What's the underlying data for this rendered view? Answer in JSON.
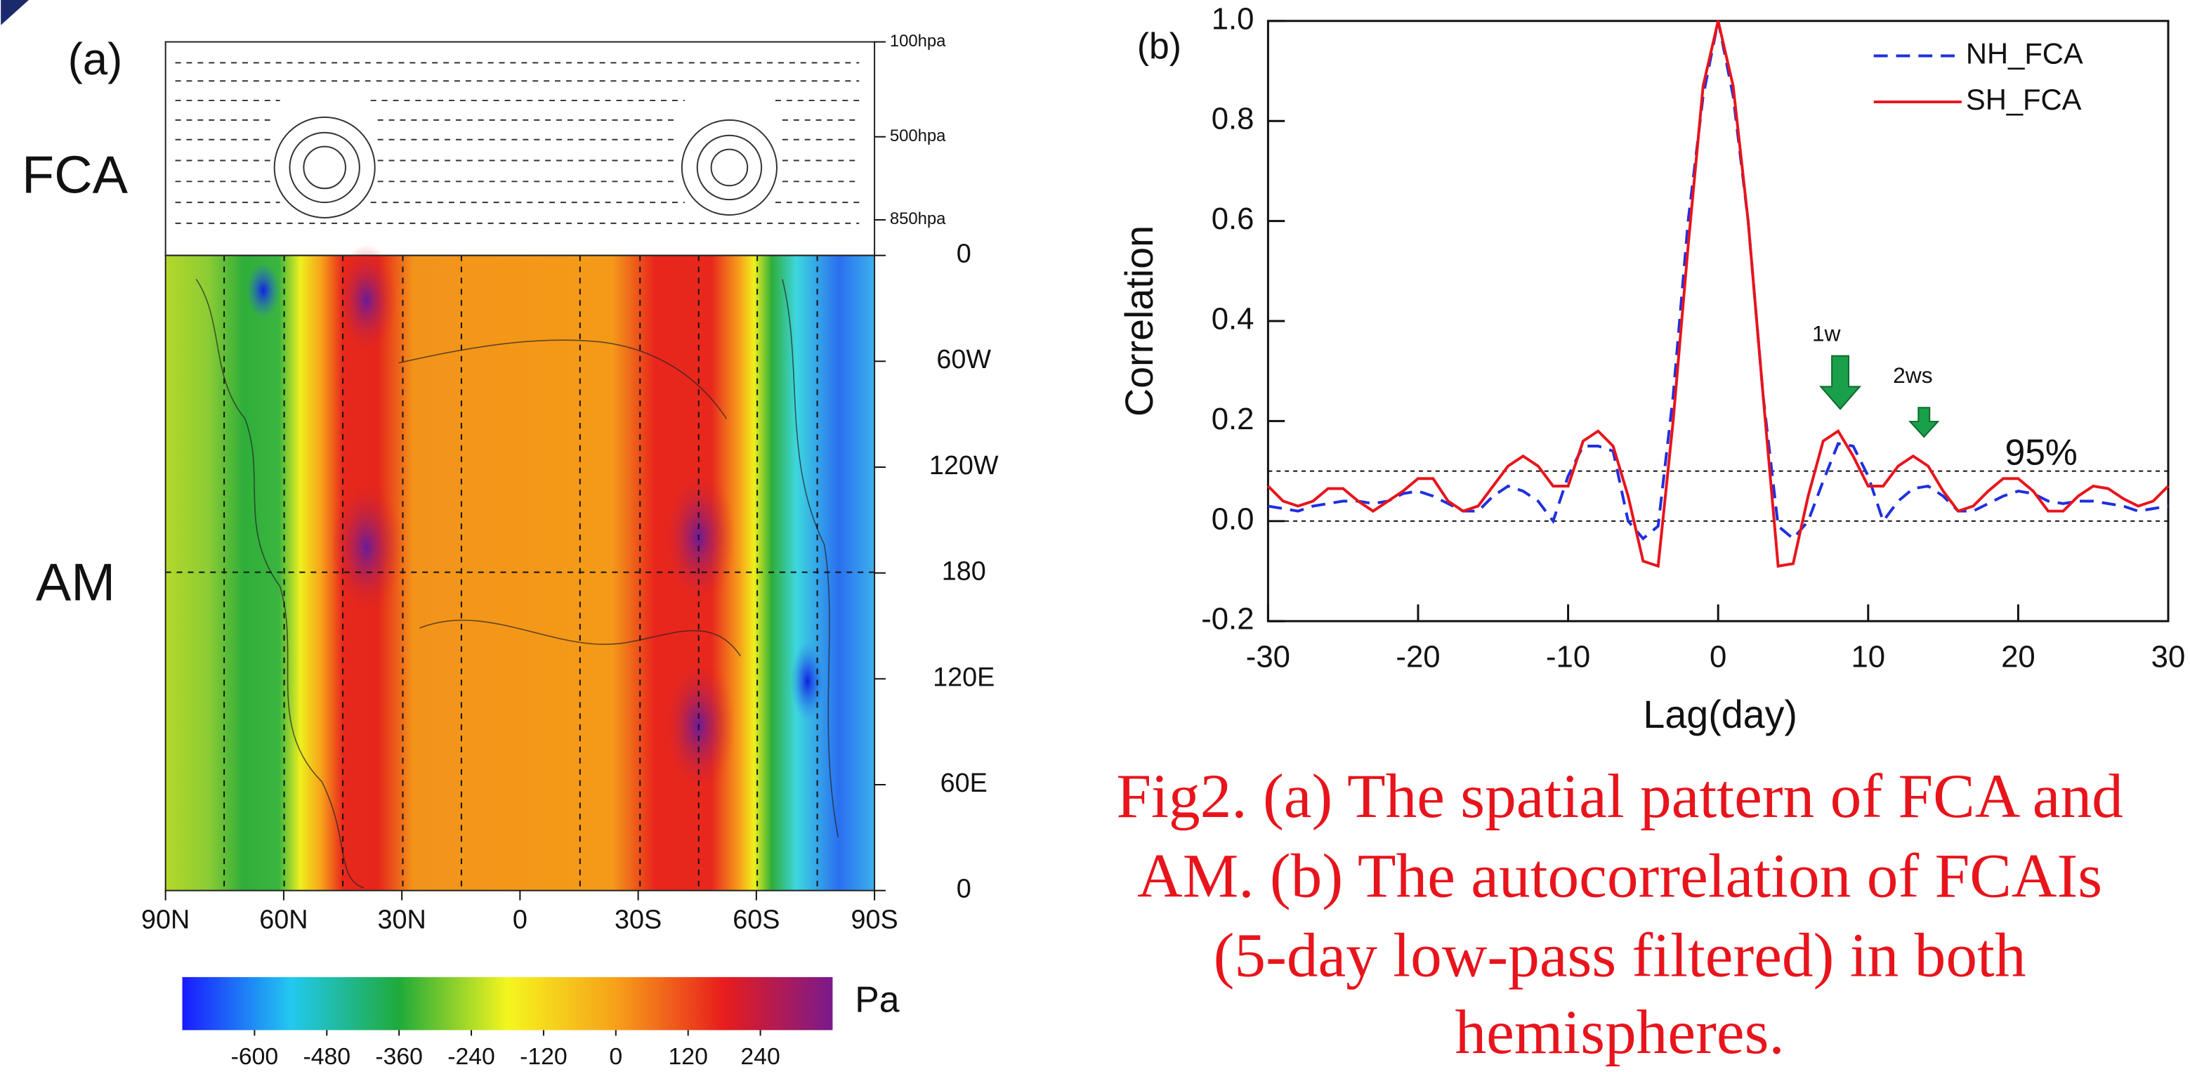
{
  "caption": [
    "Fig2. (a) The spatial pattern of FCA and",
    "AM. (b) The autocorrelation of FCAIs",
    "(5-day low-pass filtered) in both",
    "hemispheres."
  ],
  "chart_data": [
    {
      "type": "map",
      "panel_label": "(a)",
      "row_labels": [
        "FCA",
        "AM"
      ],
      "xlim": [
        90,
        -90
      ],
      "xticks": [
        {
          "value": 90,
          "label": "90N"
        },
        {
          "value": 60,
          "label": "60N"
        },
        {
          "value": 30,
          "label": "30N"
        },
        0,
        {
          "value": -30,
          "label": "30S"
        },
        {
          "value": -60,
          "label": "60S"
        },
        {
          "value": -90,
          "label": "90S"
        }
      ],
      "ylim": [
        0,
        360
      ],
      "yticks": [
        0,
        {
          "value": 60,
          "label": "60E"
        },
        {
          "value": 120,
          "label": "120E"
        },
        180,
        {
          "value": 240,
          "label": "120W"
        },
        {
          "value": 300,
          "label": "60W"
        },
        {
          "value": 360,
          "label": "0"
        }
      ],
      "pressure_lim": [
        100,
        1000
      ],
      "pressure_ticks": [
        {
          "value": 100,
          "label": "100hpa"
        },
        {
          "value": 500,
          "label": "500hpa"
        },
        {
          "value": 850,
          "label": "850hpa"
        }
      ],
      "colorbar": {
        "label": "Pa",
        "lim": [
          -720,
          360
        ],
        "ticks": [
          -600,
          -480,
          -360,
          -240,
          -120,
          0,
          120,
          240
        ],
        "colors": [
          "#1a1aff",
          "#22c8f0",
          "#1faa3a",
          "#f5f51e",
          "#f7a11a",
          "#e81c1c",
          "#7a1a8c"
        ]
      }
    },
    {
      "type": "line",
      "panel_label": "(b)",
      "xlabel": "Lag(day)",
      "ylabel": "Correlation",
      "xlim": [
        -30,
        30
      ],
      "xticks": [
        -30,
        -20,
        -10,
        0,
        10,
        20,
        30
      ],
      "ylim": [
        -0.2,
        1.0
      ],
      "yticks": [
        -0.2,
        {
          "value": 0,
          "label": "0.0"
        },
        0.2,
        0.4,
        0.6,
        0.8,
        {
          "value": 1,
          "label": "1.0"
        }
      ],
      "reference_lines": [
        0.1,
        0
      ],
      "legend": "upper right",
      "x": [
        -30,
        -29,
        -28,
        -27,
        -26,
        -25,
        -24,
        -23,
        -22,
        -21,
        -20,
        -19,
        -18,
        -17,
        -16,
        -15,
        -14,
        -13,
        -12,
        -11,
        -10,
        -9,
        -8,
        -7,
        -6,
        -5,
        -4,
        -3,
        -2,
        -1,
        0,
        1,
        2,
        3,
        4,
        5,
        6,
        7,
        8,
        9,
        10,
        11,
        12,
        13,
        14,
        15,
        16,
        17,
        18,
        19,
        20,
        21,
        22,
        23,
        24,
        25,
        26,
        27,
        28,
        29,
        30
      ],
      "series": [
        {
          "name": "NH_FCA",
          "color": "#1f2fe0",
          "line_style": "dashed",
          "values": [
            0.03,
            0.025,
            0.02,
            0.03,
            0.035,
            0.04,
            0.04,
            0.035,
            0.04,
            0.055,
            0.06,
            0.05,
            0.035,
            0.02,
            0.02,
            0.05,
            0.07,
            0.06,
            0.04,
            0.0,
            0.09,
            0.15,
            0.15,
            0.14,
            0.0,
            -0.035,
            -0.01,
            0.25,
            0.6,
            0.85,
            1.0,
            0.85,
            0.6,
            0.25,
            -0.01,
            -0.035,
            0.0,
            0.08,
            0.155,
            0.15,
            0.09,
            0.0,
            0.04,
            0.065,
            0.07,
            0.05,
            0.02,
            0.02,
            0.035,
            0.05,
            0.06,
            0.055,
            0.04,
            0.035,
            0.04,
            0.04,
            0.035,
            0.03,
            0.02,
            0.025,
            0.03
          ]
        },
        {
          "name": "SH_FCA",
          "color": "#e8141c",
          "line_style": "solid",
          "values": [
            0.07,
            0.04,
            0.03,
            0.04,
            0.065,
            0.065,
            0.04,
            0.02,
            0.04,
            0.06,
            0.085,
            0.085,
            0.04,
            0.02,
            0.03,
            0.07,
            0.11,
            0.13,
            0.11,
            0.07,
            0.07,
            0.16,
            0.18,
            0.15,
            0.05,
            -0.08,
            -0.09,
            0.2,
            0.55,
            0.87,
            1.0,
            0.87,
            0.6,
            0.25,
            -0.09,
            -0.085,
            0.05,
            0.16,
            0.18,
            0.13,
            0.07,
            0.07,
            0.11,
            0.13,
            0.11,
            0.06,
            0.02,
            0.03,
            0.06,
            0.085,
            0.085,
            0.06,
            0.02,
            0.02,
            0.05,
            0.07,
            0.065,
            0.045,
            0.03,
            0.04,
            0.07
          ]
        }
      ],
      "annotations": [
        "95%",
        "1w",
        "2ws"
      ]
    }
  ]
}
